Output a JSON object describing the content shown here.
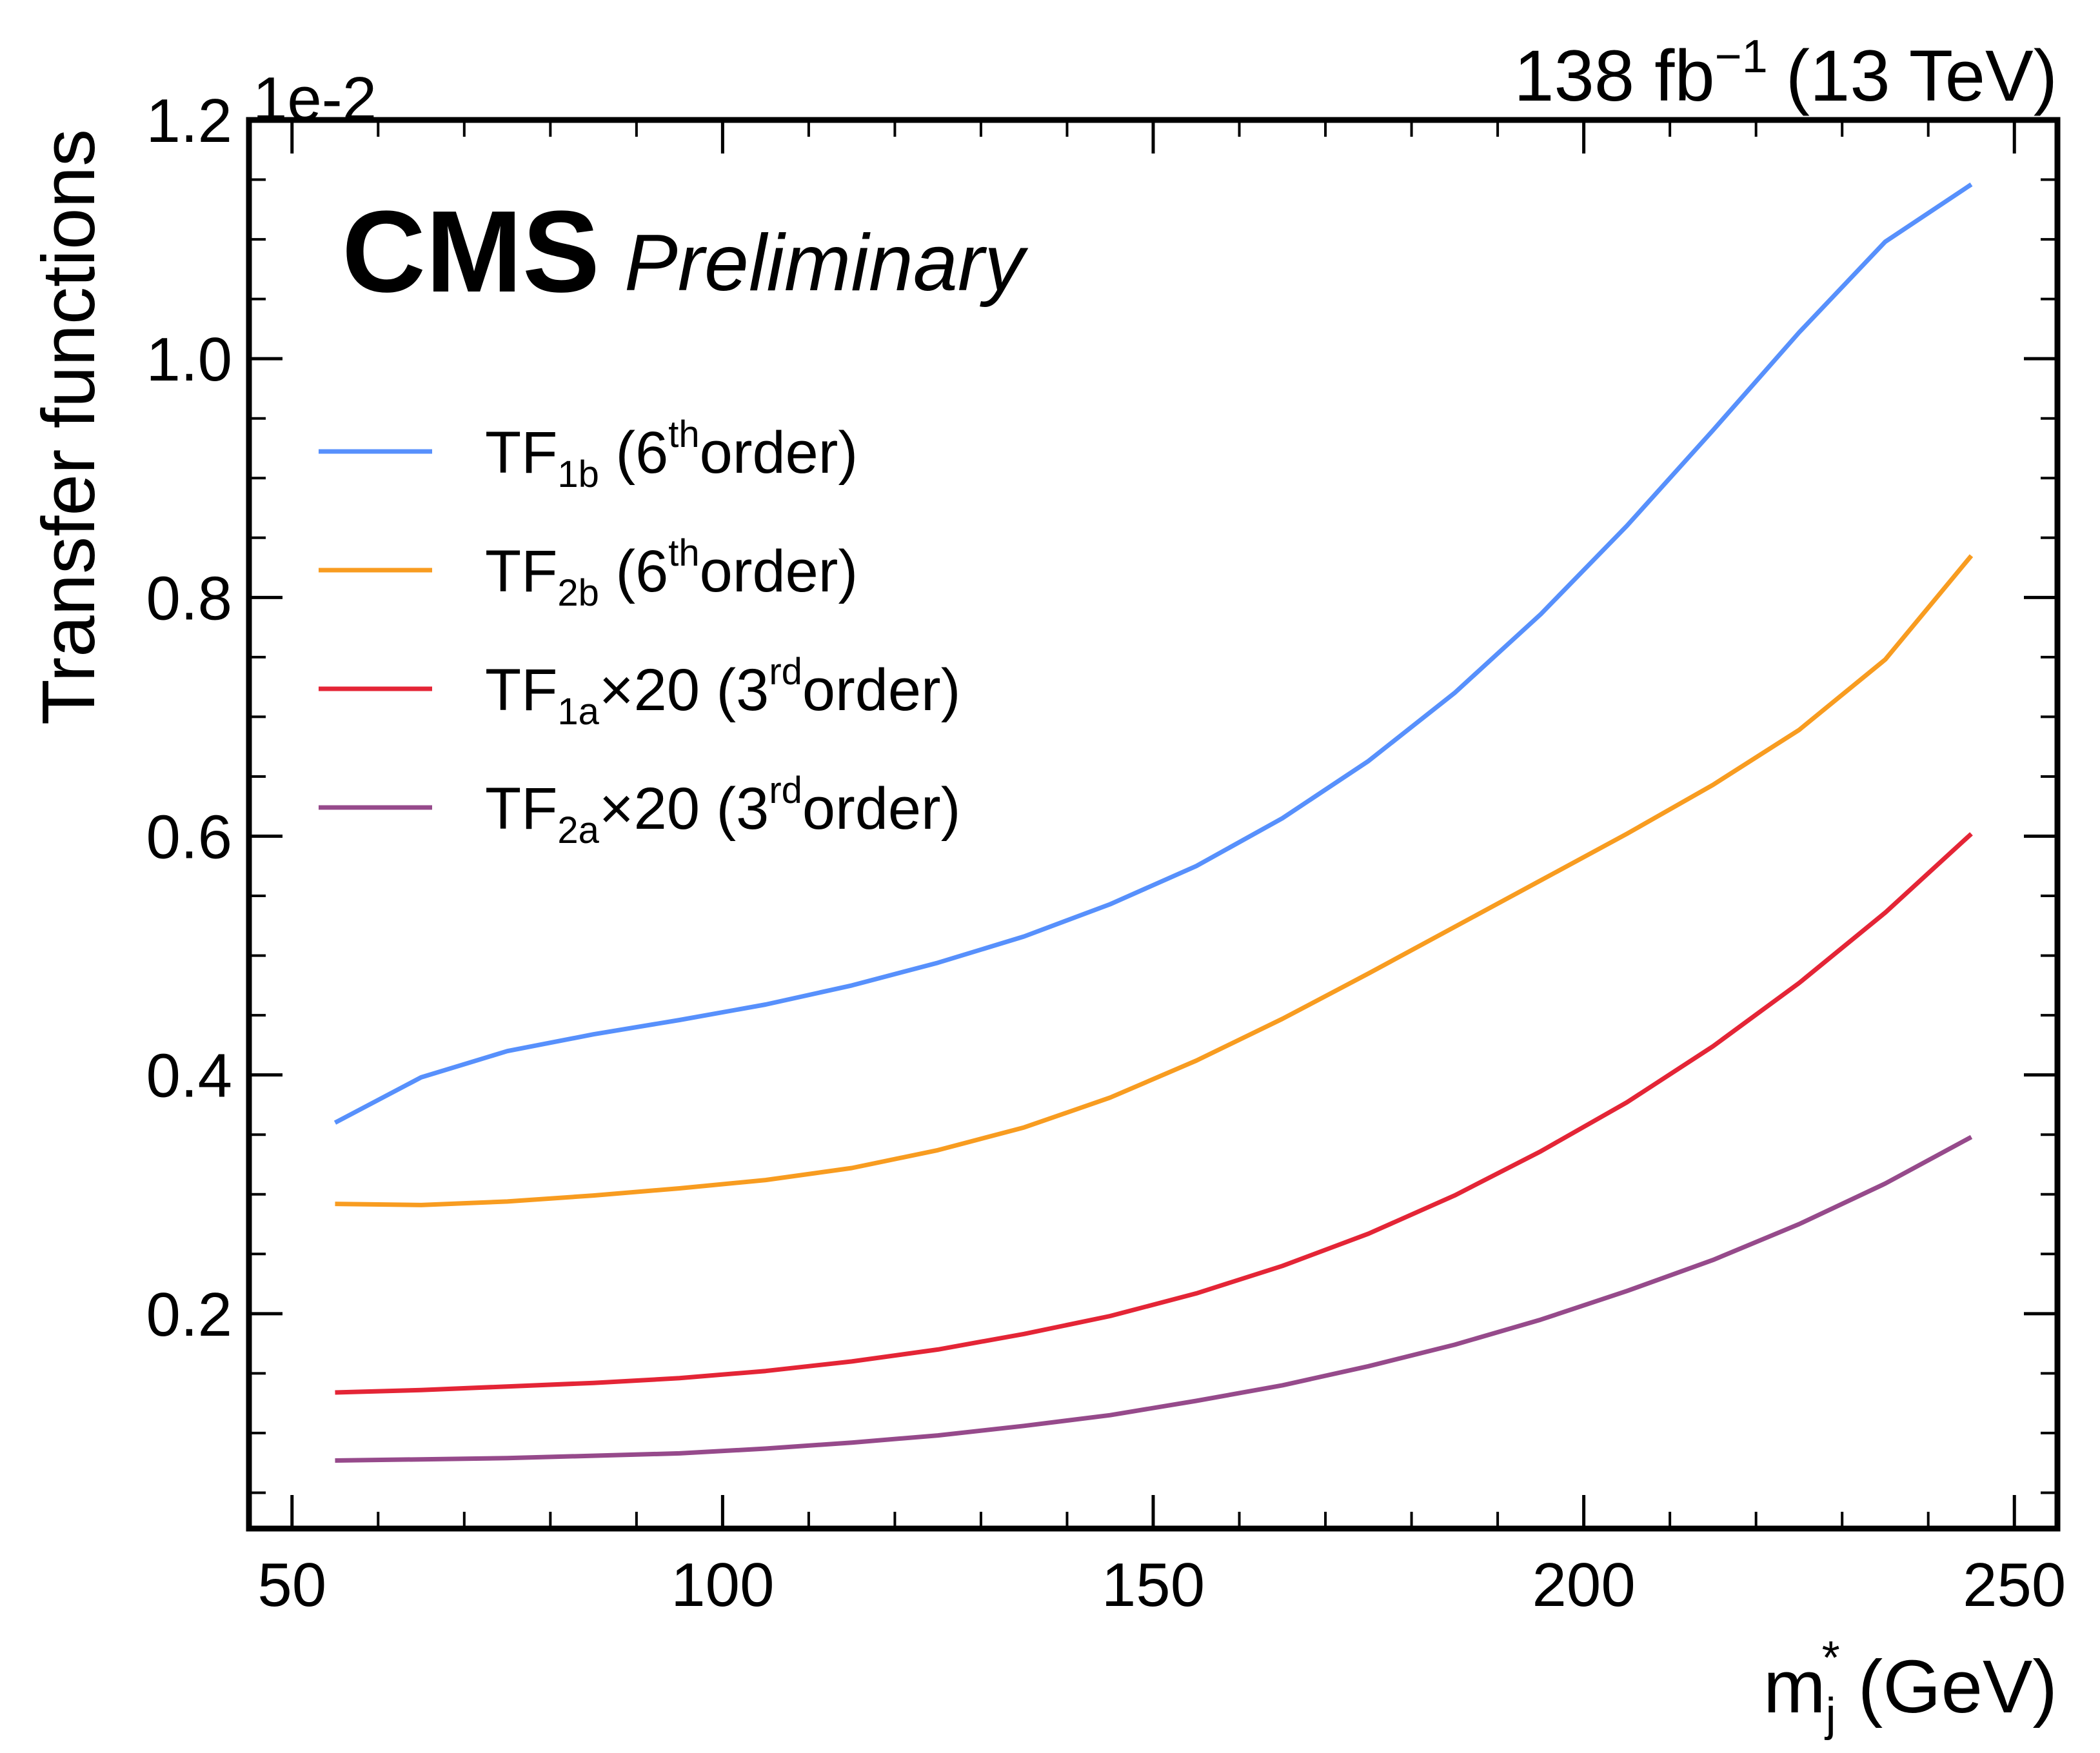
{
  "header": {
    "lumi_value": "138 fb",
    "lumi_exp": "−1",
    "lumi_energy": "(13 TeV)",
    "experiment": "CMS",
    "status": "Preliminary"
  },
  "chart_data": {
    "type": "line",
    "xlabel_main": "m",
    "xlabel_sub": "j",
    "xlabel_sup": "*",
    "xlabel_unit": "(GeV)",
    "ylabel": "Transfer functions",
    "y_multiplier": "1e-2",
    "xlim": [
      45,
      255
    ],
    "ylim": [
      0.02,
      1.2
    ],
    "x_ticks": [
      50,
      100,
      150,
      200,
      250
    ],
    "x_tick_labels": [
      "50",
      "100",
      "150",
      "200",
      "250"
    ],
    "y_ticks": [
      0.2,
      0.4,
      0.6,
      0.8,
      1.0,
      1.2
    ],
    "y_tick_labels": [
      "0.2",
      "0.4",
      "0.6",
      "0.8",
      "1.0",
      "1.2"
    ],
    "x": [
      55,
      65,
      75,
      85,
      95,
      105,
      115,
      125,
      135,
      145,
      155,
      165,
      175,
      185,
      195,
      205,
      215,
      225,
      235,
      245
    ],
    "legend_position": "upper-left",
    "series": [
      {
        "name": "TF",
        "sub": "1b",
        "suffix": " (6",
        "sup": "th",
        "tail": "order)",
        "color": "#5790fc",
        "values": [
          0.36,
          0.398,
          0.42,
          0.434,
          0.446,
          0.459,
          0.475,
          0.494,
          0.516,
          0.543,
          0.575,
          0.615,
          0.663,
          0.72,
          0.786,
          0.86,
          0.94,
          1.022,
          1.098,
          1.146
        ]
      },
      {
        "name": "TF",
        "sub": "2b",
        "suffix": " (6",
        "sup": "th",
        "tail": "order)",
        "color": "#f89c20",
        "values": [
          0.292,
          0.291,
          0.294,
          0.299,
          0.305,
          0.312,
          0.322,
          0.337,
          0.356,
          0.381,
          0.412,
          0.447,
          0.485,
          0.524,
          0.563,
          0.602,
          0.643,
          0.689,
          0.748,
          0.835
        ]
      },
      {
        "name": "TF",
        "sub": "1a",
        "suffix": "×20 (3",
        "sup": "rd",
        "tail": "order)",
        "color": "#e42536",
        "values": [
          0.134,
          0.136,
          0.139,
          0.142,
          0.146,
          0.152,
          0.16,
          0.17,
          0.183,
          0.198,
          0.217,
          0.24,
          0.267,
          0.299,
          0.336,
          0.377,
          0.424,
          0.477,
          0.536,
          0.602
        ]
      },
      {
        "name": "TF",
        "sub": "2a",
        "suffix": "×20 (3",
        "sup": "rd",
        "tail": "order)",
        "color": "#964a8b",
        "values": [
          0.077,
          0.078,
          0.079,
          0.081,
          0.083,
          0.087,
          0.092,
          0.098,
          0.106,
          0.115,
          0.127,
          0.14,
          0.156,
          0.174,
          0.195,
          0.219,
          0.245,
          0.275,
          0.309,
          0.348
        ]
      }
    ]
  }
}
